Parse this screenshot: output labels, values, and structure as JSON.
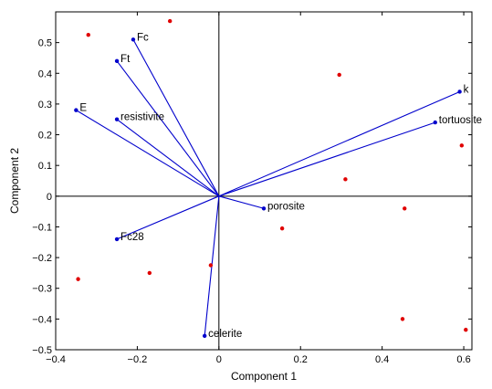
{
  "chart_data": {
    "type": "biplot",
    "xlabel": "Component 1",
    "ylabel": "Component 2",
    "xlim": [
      -0.4,
      0.62
    ],
    "ylim": [
      -0.5,
      0.6
    ],
    "xticks": [
      "−0.4",
      "−0.2",
      "0",
      "0.2",
      "0.4",
      "0.6"
    ],
    "xtick_values": [
      -0.4,
      -0.2,
      0,
      0.2,
      0.4,
      0.6
    ],
    "yticks": [
      "0.5",
      "0.4",
      "0.3",
      "0.2",
      "0.1",
      "0",
      "−0.1",
      "−0.2",
      "−0.3",
      "−0.4",
      "−0.5"
    ],
    "ytick_values": [
      0.5,
      0.4,
      0.3,
      0.2,
      0.1,
      0,
      -0.1,
      -0.2,
      -0.3,
      -0.4,
      -0.5
    ],
    "grid": false,
    "vector_color": "#0000cc",
    "point_color": "#e00000",
    "vectors": [
      {
        "name": "Fc",
        "x": -0.21,
        "y": 0.51
      },
      {
        "name": "Ft",
        "x": -0.25,
        "y": 0.44
      },
      {
        "name": "E",
        "x": -0.35,
        "y": 0.28
      },
      {
        "name": "resistivite",
        "x": -0.25,
        "y": 0.25
      },
      {
        "name": "k",
        "x": 0.59,
        "y": 0.34
      },
      {
        "name": "tortuosite",
        "x": 0.53,
        "y": 0.24
      },
      {
        "name": "porosite",
        "x": 0.11,
        "y": -0.04
      },
      {
        "name": "Fc28",
        "x": -0.25,
        "y": -0.14
      },
      {
        "name": "celerite",
        "x": -0.035,
        "y": -0.455
      }
    ],
    "points": [
      {
        "x": -0.32,
        "y": 0.525
      },
      {
        "x": -0.12,
        "y": 0.57
      },
      {
        "x": 0.295,
        "y": 0.395
      },
      {
        "x": 0.595,
        "y": 0.165
      },
      {
        "x": 0.31,
        "y": 0.055
      },
      {
        "x": 0.455,
        "y": -0.04
      },
      {
        "x": 0.155,
        "y": -0.105
      },
      {
        "x": -0.17,
        "y": -0.25
      },
      {
        "x": -0.02,
        "y": -0.225
      },
      {
        "x": -0.345,
        "y": -0.27
      },
      {
        "x": 0.45,
        "y": -0.4
      },
      {
        "x": 0.605,
        "y": -0.435
      }
    ]
  }
}
